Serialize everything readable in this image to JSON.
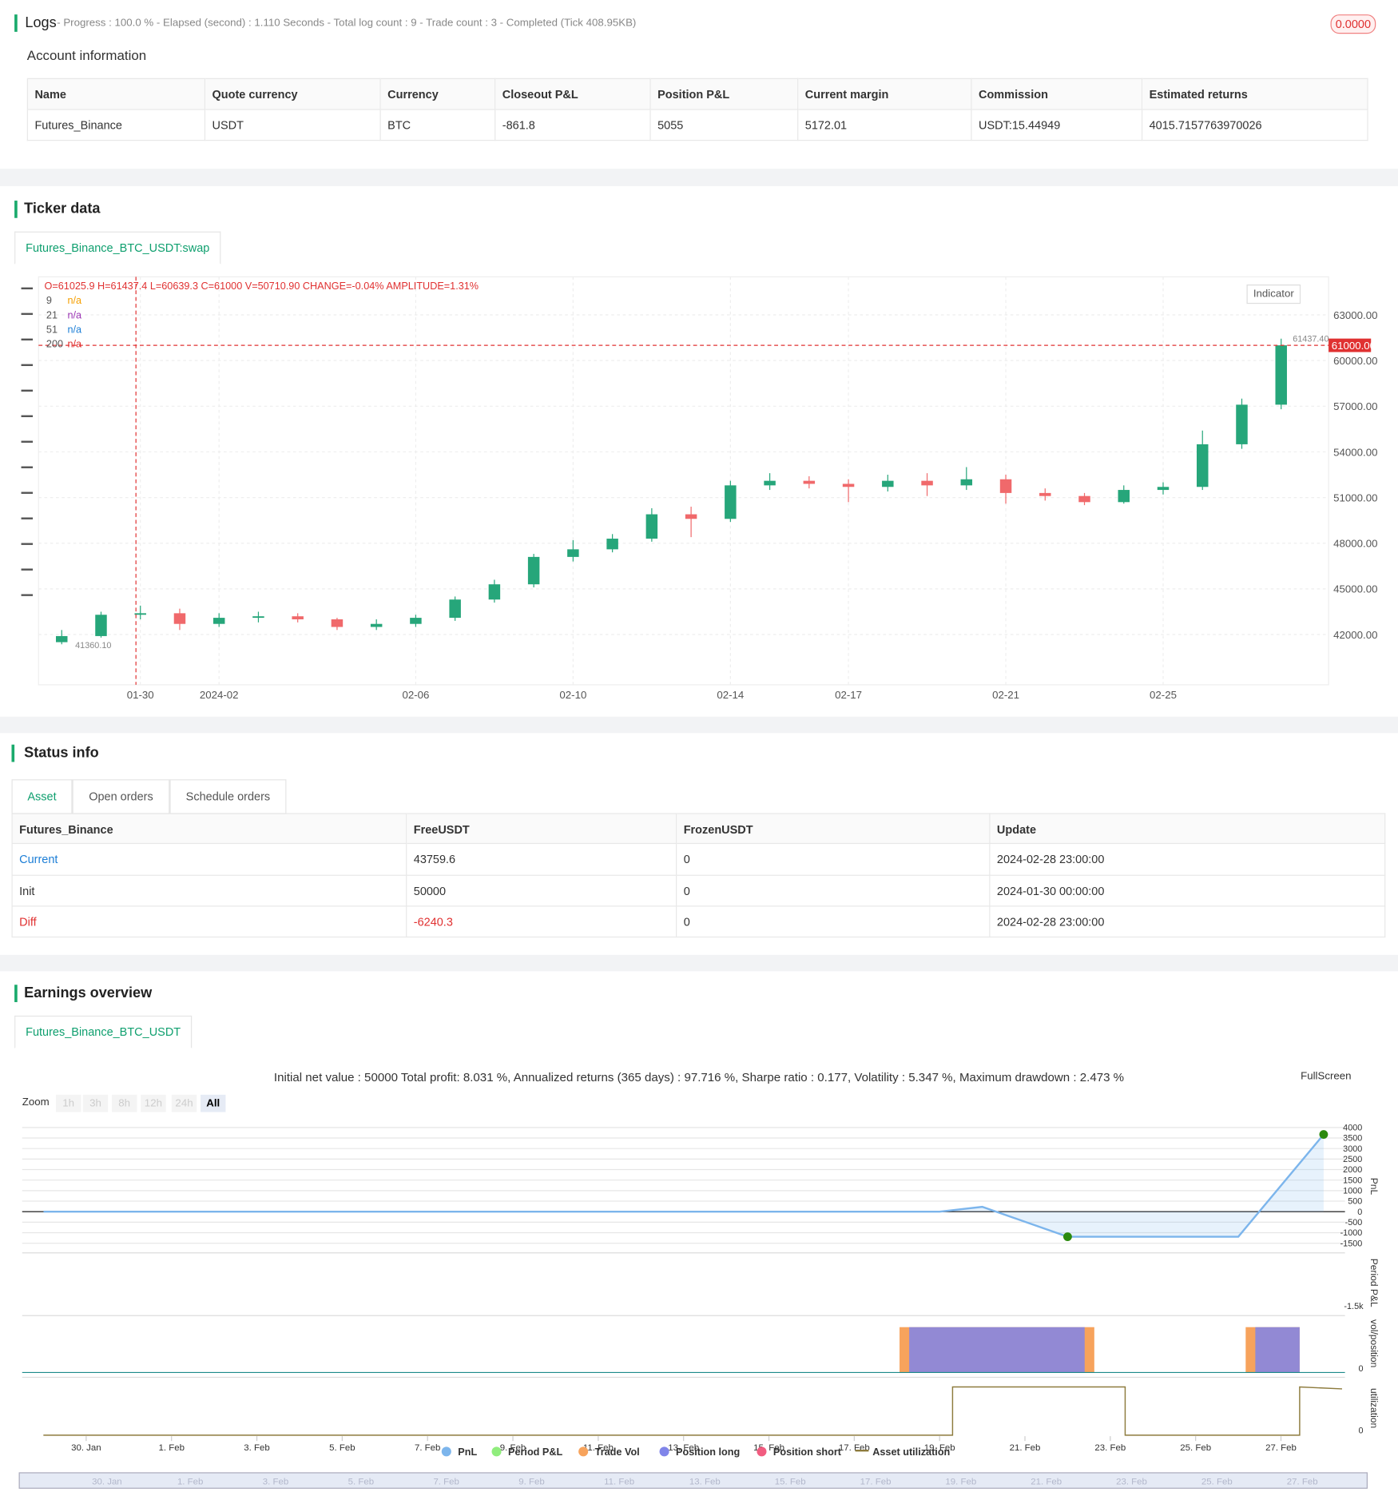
{
  "logs": {
    "title": "Logs",
    "progress": "- Progress : 100.0 % - Elapsed (second) : 1.110  Seconds - Total log count : 9 - Trade count : 3 - Completed (Tick 408.95KB)",
    "badge": "0.0000"
  },
  "account": {
    "title": "Account information",
    "headers": [
      "Name",
      "Quote currency",
      "Currency",
      "Closeout P&L",
      "Position P&L",
      "Current margin",
      "Commission",
      "Estimated returns"
    ],
    "rows": [
      [
        "Futures_Binance",
        "USDT",
        "BTC",
        "-861.8",
        "5055",
        "5172.01",
        "USDT:15.44949",
        "4015.7157763970026"
      ]
    ]
  },
  "ticker": {
    "title": "Ticker data",
    "tab": "Futures_Binance_BTC_USDT:swap",
    "ohlc": "O=61025.9 H=61437.4 L=60639.3 C=61000 V=50710.90 CHANGE=-0.04% AMPLITUDE=1.31%",
    "indicator": "Indicator",
    "ma": [
      {
        "period": "9",
        "value": "n/a",
        "color": "#f59f00"
      },
      {
        "period": "21",
        "value": "n/a",
        "color": "#9c36b5"
      },
      {
        "period": "51",
        "value": "n/a",
        "color": "#1c7ed6"
      },
      {
        "period": "200",
        "value": "n/a",
        "color": "#e03131"
      }
    ],
    "high_label": "61437.40",
    "low_label": "41360.10"
  },
  "status": {
    "title": "Status info",
    "tabs": [
      "Asset",
      "Open orders",
      "Schedule orders"
    ],
    "headers": [
      "Futures_Binance",
      "FreeUSDT",
      "FrozenUSDT",
      "Update"
    ],
    "rows": [
      [
        "Current",
        "43759.6",
        "0",
        "2024-02-28 23:00:00"
      ],
      [
        "Init",
        "50000",
        "0",
        "2024-01-30 00:00:00"
      ],
      [
        "Diff",
        "-6240.3",
        "0",
        "2024-02-28 23:00:00"
      ]
    ]
  },
  "earnings": {
    "title": "Earnings overview",
    "tab": "Futures_Binance_BTC_USDT",
    "fullscreen": "FullScreen",
    "zoom": "Zoom",
    "zoom_buttons": [
      "1h",
      "3h",
      "8h",
      "12h",
      "24h",
      "All"
    ],
    "panel_titles": [
      "PnL",
      "Period P&L",
      "vol/position",
      "utilization"
    ],
    "period_tick": "-1.5k",
    "vol_tick": "0",
    "util_tick": "0"
  },
  "chart_data": [
    {
      "type": "candlestick",
      "up_color": "#26a67a",
      "down_color": "#f0696b",
      "categories": [
        null,
        null,
        "01-30",
        null,
        "2024-02",
        null,
        null,
        null,
        null,
        "02-06",
        null,
        null,
        null,
        "02-10",
        null,
        null,
        null,
        "02-14",
        null,
        null,
        "02-17",
        null,
        null,
        null,
        "02-21",
        null,
        null,
        null,
        "02-25",
        null,
        null,
        null
      ],
      "open": [
        41500,
        41900,
        43300,
        43400,
        42700,
        43100,
        43200,
        43000,
        42500,
        42700,
        43100,
        44300,
        45300,
        47100,
        47600,
        48300,
        49900,
        49600,
        51800,
        52100,
        51900,
        51700,
        52100,
        51800,
        52200,
        51300,
        51100,
        50700,
        51500,
        51700,
        54500,
        57100
      ],
      "high": [
        42300,
        43500,
        43900,
        43700,
        43400,
        43500,
        43400,
        43100,
        43000,
        43300,
        44500,
        45600,
        47300,
        48200,
        48600,
        50300,
        50400,
        52100,
        52600,
        52400,
        52200,
        52500,
        52600,
        53000,
        52500,
        51600,
        51300,
        51800,
        52000,
        55400,
        57500,
        61437.4
      ],
      "low": [
        41360.1,
        41800,
        43000,
        42300,
        42500,
        42800,
        42800,
        42300,
        42300,
        42500,
        42900,
        44100,
        45100,
        46800,
        47400,
        48100,
        48400,
        49400,
        51500,
        51600,
        50700,
        51400,
        51100,
        51500,
        50600,
        50800,
        50500,
        50600,
        51200,
        51500,
        54200,
        56800
      ],
      "close": [
        41900,
        43300,
        43400,
        42700,
        43100,
        43200,
        43000,
        42500,
        42700,
        43100,
        44300,
        45300,
        47100,
        47600,
        48300,
        49900,
        49600,
        51800,
        52100,
        51900,
        51700,
        52100,
        51800,
        52200,
        51300,
        51100,
        50700,
        51500,
        51700,
        54500,
        57100,
        61000
      ],
      "ylim": [
        38700,
        65500
      ],
      "yticks": [
        {
          "value": 42000,
          "label": "42000.00"
        },
        {
          "value": 45000,
          "label": "45000.00"
        },
        {
          "value": 48000,
          "label": "48000.00"
        },
        {
          "value": 51000,
          "label": "51000.00"
        },
        {
          "value": 54000,
          "label": "54000.00"
        },
        {
          "value": 57000,
          "label": "57000.00"
        },
        {
          "value": 60000,
          "label": "60000.00"
        },
        {
          "value": 63000,
          "label": "63000.00"
        }
      ],
      "grid": true,
      "price_line": {
        "value": 61000,
        "label": "61000.00",
        "color": "#e03131"
      }
    },
    {
      "type": "line",
      "subtitle": "Initial net value : 50000 Total profit: 8.031 %, Annualized returns (365 days) : 97.716 %, Sharpe ratio : 0.177, Volatility : 5.347 %, Maximum drawdown : 2.473 %",
      "x": [
        29,
        50,
        51,
        53,
        57,
        59
      ],
      "series": [
        {
          "name": "PnL",
          "color": "#7cb5ec",
          "values": [
            0,
            0,
            230,
            -1190,
            -1190,
            3670
          ]
        }
      ],
      "legend": [
        {
          "name": "PnL",
          "color": "#7cb5ec"
        },
        {
          "name": "Period P&L",
          "color": "#90ed7d"
        },
        {
          "name": "Trade Vol",
          "color": "#f7a35c"
        },
        {
          "name": "Position long",
          "color": "#8085e9"
        },
        {
          "name": "Position short",
          "color": "#f15c80"
        },
        {
          "name": "Asset utilization",
          "color": "#8d7b3d"
        }
      ],
      "xlim": [
        28.5,
        59.5
      ],
      "xticks": [
        {
          "value": 30,
          "label": "30. Jan"
        },
        {
          "value": 32,
          "label": "1. Feb"
        },
        {
          "value": 34,
          "label": "3. Feb"
        },
        {
          "value": 36,
          "label": "5. Feb"
        },
        {
          "value": 38,
          "label": "7. Feb"
        },
        {
          "value": 40,
          "label": "9. Feb"
        },
        {
          "value": 42,
          "label": "11. Feb"
        },
        {
          "value": 44,
          "label": "13. Feb"
        },
        {
          "value": 46,
          "label": "15. Feb"
        },
        {
          "value": 48,
          "label": "17. Feb"
        },
        {
          "value": 50,
          "label": "19. Feb"
        },
        {
          "value": 52,
          "label": "21. Feb"
        },
        {
          "value": 54,
          "label": "23. Feb"
        },
        {
          "value": 56,
          "label": "25. Feb"
        },
        {
          "value": 58,
          "label": "27. Feb"
        }
      ],
      "ylim": [
        -1775,
        4275
      ],
      "yticks": [
        -1500,
        -1000,
        -500,
        0,
        500,
        1000,
        1500,
        2000,
        2500,
        3000,
        3500,
        4000
      ],
      "grid": true
    }
  ]
}
